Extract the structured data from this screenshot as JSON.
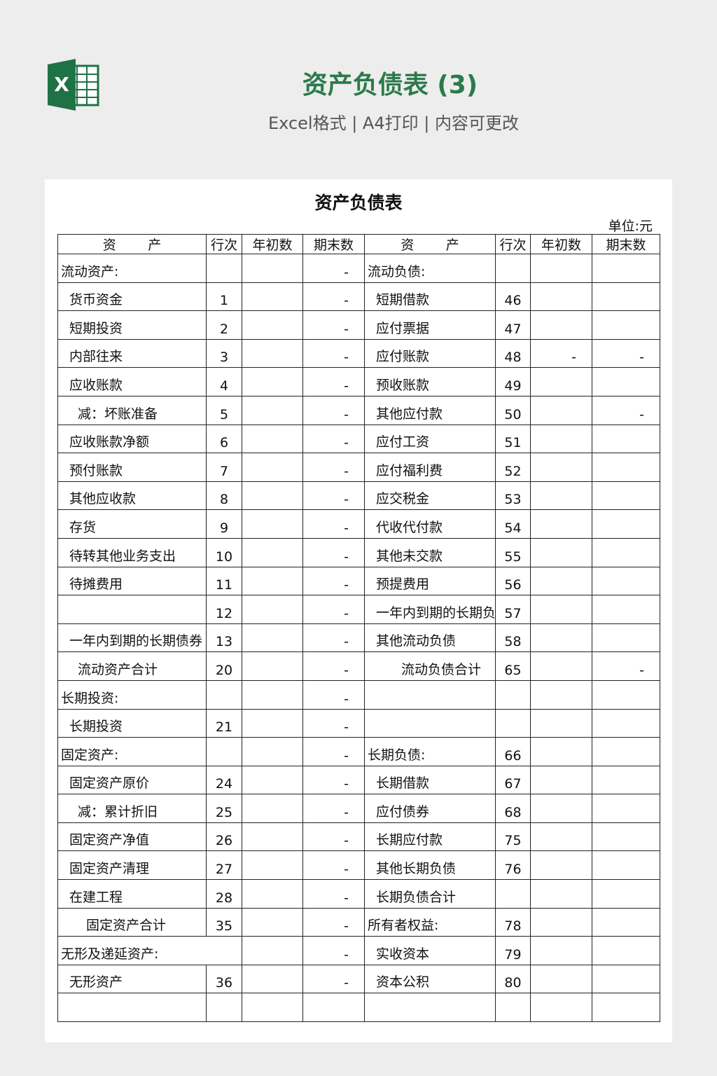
{
  "header": {
    "title": "资产负债表 (3)",
    "subtitle": "Excel格式 | A4打印 | 内容可更改"
  },
  "sheet": {
    "title": "资产负债表",
    "unit": "单位:元"
  },
  "table": {
    "header": [
      "资产",
      "行次",
      "年初数",
      "期末数",
      "资产",
      "行次",
      "年初数",
      "期末数"
    ],
    "rows": [
      [
        "流动资产:",
        null,
        null,
        "-",
        "流动负债:",
        null,
        null,
        null
      ],
      [
        "货币资金",
        1,
        null,
        "-",
        "短期借款",
        46,
        null,
        null
      ],
      [
        "短期投资",
        2,
        null,
        "-",
        "应付票据",
        47,
        null,
        null
      ],
      [
        "内部往来",
        3,
        null,
        "-",
        "应付账款",
        48,
        "-",
        "-"
      ],
      [
        "应收账款",
        4,
        null,
        "-",
        "预收账款",
        49,
        null,
        null
      ],
      [
        "减：坏账准备",
        5,
        null,
        "-",
        "其他应付款",
        50,
        null,
        "-"
      ],
      [
        "应收账款净额",
        6,
        null,
        "-",
        "应付工资",
        51,
        null,
        null
      ],
      [
        "预付账款",
        7,
        null,
        "-",
        "应付福利费",
        52,
        null,
        null
      ],
      [
        "其他应收款",
        8,
        null,
        "-",
        "应交税金",
        53,
        null,
        null
      ],
      [
        "存货",
        9,
        null,
        "-",
        "代收代付款",
        54,
        null,
        null
      ],
      [
        "待转其他业务支出",
        10,
        null,
        "-",
        "其他未交款",
        55,
        null,
        null
      ],
      [
        "待摊费用",
        11,
        null,
        "-",
        "预提费用",
        56,
        null,
        null
      ],
      [
        null,
        12,
        null,
        "-",
        "一年内到期的长期负债",
        57,
        null,
        null
      ],
      [
        "一年内到期的长期债券",
        13,
        null,
        "-",
        "其他流动负债",
        58,
        null,
        null
      ],
      [
        "流动资产合计",
        20,
        null,
        "-",
        "流动负债合计",
        65,
        null,
        "-"
      ],
      [
        "长期投资:",
        null,
        null,
        "-",
        null,
        null,
        null,
        null
      ],
      [
        "长期投资",
        21,
        null,
        "-",
        null,
        null,
        null,
        null
      ],
      [
        "固定资产:",
        null,
        null,
        "-",
        "长期负债:",
        66,
        null,
        null
      ],
      [
        "固定资产原价",
        24,
        null,
        "-",
        "长期借款",
        67,
        null,
        null
      ],
      [
        "减：累计折旧",
        25,
        null,
        "-",
        "应付债券",
        68,
        null,
        null
      ],
      [
        "固定资产净值",
        26,
        null,
        "-",
        "长期应付款",
        75,
        null,
        null
      ],
      [
        "固定资产清理",
        27,
        null,
        "-",
        "其他长期负债",
        76,
        null,
        null
      ],
      [
        "在建工程",
        28,
        null,
        "-",
        "长期负债合计",
        null,
        null,
        null
      ],
      [
        "固定资产合计",
        35,
        null,
        "-",
        "所有者权益:",
        78,
        null,
        null
      ],
      [
        "无形及递延资产:",
        null,
        null,
        "-",
        "实收资本",
        79,
        null,
        null
      ],
      [
        "无形资产",
        36,
        null,
        "-",
        "资本公积",
        80,
        null,
        null
      ]
    ]
  }
}
